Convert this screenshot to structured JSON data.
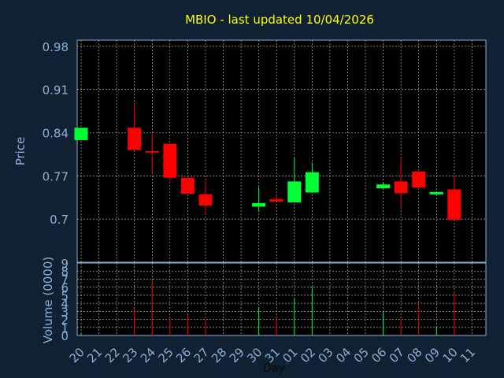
{
  "chart_data": [
    {
      "type": "candlestick",
      "title": "MBIO - last updated 10/04/2026",
      "ylabel": "Price",
      "xlabel": "Day",
      "ylim": [
        0.63,
        0.99
      ],
      "yticks": [
        "0.98",
        "0.91",
        "0.84",
        "0.77",
        "0.7"
      ],
      "ytick_values": [
        0.98,
        0.91,
        0.84,
        0.77,
        0.7
      ],
      "grid": true,
      "colors": {
        "up": "#00ff33",
        "down": "#ff0000",
        "background": "#0f2133",
        "plot": "#000000",
        "grid": "#c8c8c8",
        "title": "#ffff00",
        "axis_text": "#8cb0d6"
      },
      "x_ticks": [
        "20",
        "21",
        "22",
        "23",
        "24",
        "25",
        "26",
        "27",
        "28",
        "29",
        "30",
        "31",
        "01",
        "02",
        "03",
        "04",
        "05",
        "06",
        "07",
        "08",
        "09",
        "10",
        "11"
      ],
      "candles": [
        {
          "day": "20",
          "open": 0.828,
          "close": 0.848,
          "high": 0.848,
          "low": 0.828
        },
        {
          "day": "23",
          "open": 0.848,
          "close": 0.812,
          "high": 0.887,
          "low": 0.812
        },
        {
          "day": "24",
          "open": 0.81,
          "close": 0.808,
          "high": 0.838,
          "low": 0.775
        },
        {
          "day": "25",
          "open": 0.822,
          "close": 0.767,
          "high": 0.822,
          "low": 0.762
        },
        {
          "day": "26",
          "open": 0.767,
          "close": 0.741,
          "high": 0.767,
          "low": 0.741
        },
        {
          "day": "27",
          "open": 0.74,
          "close": 0.722,
          "high": 0.762,
          "low": 0.708
        },
        {
          "day": "30",
          "open": 0.72,
          "close": 0.726,
          "high": 0.752,
          "low": 0.712
        },
        {
          "day": "31",
          "open": 0.732,
          "close": 0.728,
          "high": 0.74,
          "low": 0.728
        },
        {
          "day": "01",
          "open": 0.727,
          "close": 0.761,
          "high": 0.8,
          "low": 0.727
        },
        {
          "day": "02",
          "open": 0.743,
          "close": 0.776,
          "high": 0.792,
          "low": 0.743
        },
        {
          "day": "06",
          "open": 0.75,
          "close": 0.756,
          "high": 0.76,
          "low": 0.75
        },
        {
          "day": "07",
          "open": 0.761,
          "close": 0.742,
          "high": 0.801,
          "low": 0.72
        },
        {
          "day": "08",
          "open": 0.777,
          "close": 0.751,
          "high": 0.78,
          "low": 0.747
        },
        {
          "day": "09",
          "open": 0.74,
          "close": 0.744,
          "high": 0.744,
          "low": 0.738
        },
        {
          "day": "10",
          "open": 0.748,
          "close": 0.699,
          "high": 0.77,
          "low": 0.699
        }
      ]
    },
    {
      "type": "bar",
      "ylabel": "Volume (0000)",
      "xlabel": "Day",
      "ylim": [
        0,
        9
      ],
      "yticks": [
        "9",
        "8",
        "7",
        "6",
        "5",
        "4",
        "3",
        "2",
        "1",
        "0"
      ],
      "ytick_values": [
        9,
        8,
        7,
        6,
        5,
        4,
        3,
        2,
        1,
        0
      ],
      "categories": [
        "20",
        "23",
        "24",
        "25",
        "26",
        "27",
        "30",
        "31",
        "01",
        "02",
        "06",
        "07",
        "08",
        "09",
        "10"
      ],
      "values": [
        0.3,
        3.3,
        6.8,
        2.2,
        2.5,
        2.0,
        3.5,
        2.2,
        4.7,
        6.0,
        3.0,
        2.0,
        3.8,
        1.2,
        5.3
      ],
      "directions": [
        "up",
        "down",
        "down",
        "down",
        "down",
        "down",
        "up",
        "down",
        "up",
        "up",
        "up",
        "down",
        "down",
        "up",
        "down"
      ]
    }
  ]
}
